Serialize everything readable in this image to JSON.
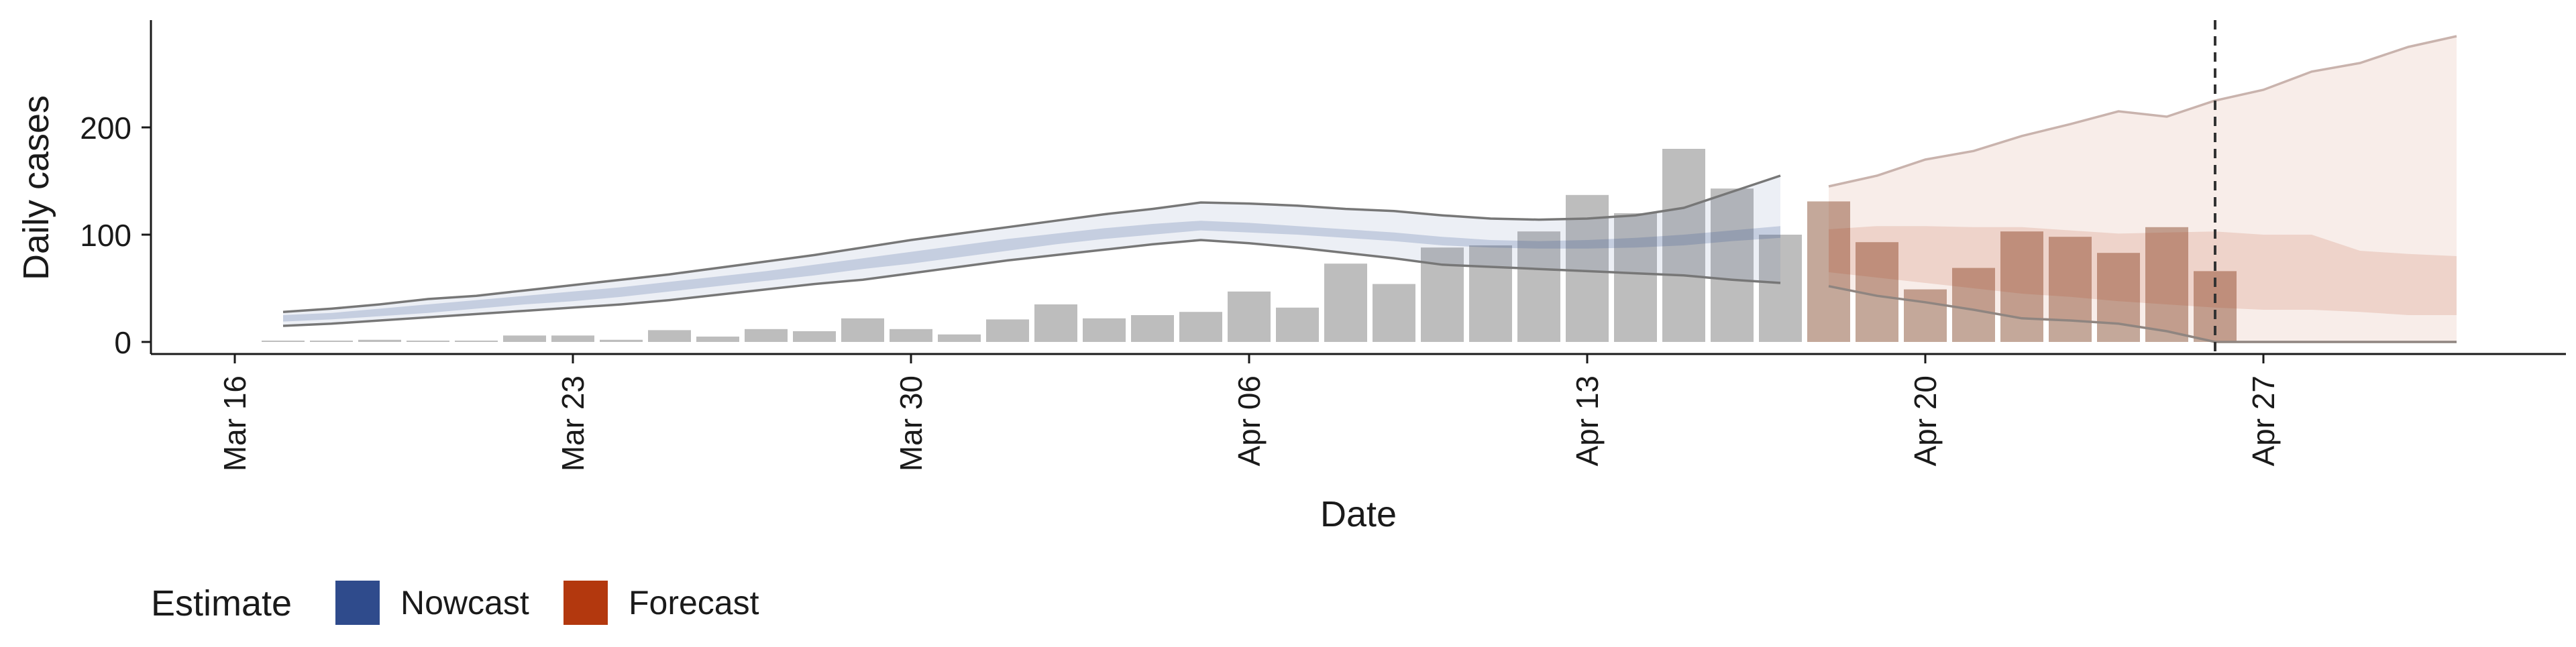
{
  "chart_data": {
    "type": "bar",
    "title": "",
    "xlabel": "Date",
    "ylabel": "Daily cases",
    "x_axis_type": "date",
    "xlim": [
      "2020-03-16",
      "2020-05-01"
    ],
    "ylim": [
      0,
      300
    ],
    "x_ticks": [
      {
        "date": "2020-03-16",
        "label": "Mar 16"
      },
      {
        "date": "2020-03-23",
        "label": "Mar 23"
      },
      {
        "date": "2020-03-30",
        "label": "Mar 30"
      },
      {
        "date": "2020-04-06",
        "label": "Apr 06"
      },
      {
        "date": "2020-04-13",
        "label": "Apr 13"
      },
      {
        "date": "2020-04-20",
        "label": "Apr 20"
      },
      {
        "date": "2020-04-27",
        "label": "Apr 27"
      }
    ],
    "y_ticks": [
      0,
      100,
      200
    ],
    "grid": false,
    "legend": {
      "position": "bottom-left",
      "title": "Estimate",
      "entries": [
        {
          "label": "Nowcast",
          "color": "#2f4b8c"
        },
        {
          "label": "Forecast",
          "color": "#b3380e"
        }
      ]
    },
    "colors": {
      "bars": "#bdbdbd",
      "forecast_bars": "#c4a89a",
      "nowcast_band": "#2f4b8c",
      "forecast_band": "#b3380e",
      "range_lines": "#777777",
      "vline": "#333333"
    },
    "vline_date": "2020-04-26",
    "observed_cases": {
      "dates": [
        "2020-03-17",
        "2020-03-18",
        "2020-03-19",
        "2020-03-20",
        "2020-03-21",
        "2020-03-22",
        "2020-03-23",
        "2020-03-24",
        "2020-03-25",
        "2020-03-26",
        "2020-03-27",
        "2020-03-28",
        "2020-03-29",
        "2020-03-30",
        "2020-03-31",
        "2020-04-01",
        "2020-04-02",
        "2020-04-03",
        "2020-04-04",
        "2020-04-05",
        "2020-04-06",
        "2020-04-07",
        "2020-04-08",
        "2020-04-09",
        "2020-04-10",
        "2020-04-11",
        "2020-04-12",
        "2020-04-13",
        "2020-04-14",
        "2020-04-15",
        "2020-04-16",
        "2020-04-17",
        "2020-04-18",
        "2020-04-19",
        "2020-04-20",
        "2020-04-21",
        "2020-04-22",
        "2020-04-23",
        "2020-04-24",
        "2020-04-25",
        "2020-04-26"
      ],
      "values": [
        1,
        0,
        2,
        0,
        0,
        6,
        6,
        2,
        11,
        5,
        12,
        10,
        22,
        12,
        7,
        21,
        35,
        22,
        25,
        28,
        47,
        32,
        73,
        54,
        88,
        90,
        103,
        137,
        120,
        180,
        143,
        100,
        131,
        93,
        49,
        69,
        103,
        98,
        83,
        107,
        66
      ]
    },
    "nowcast": {
      "dates": [
        "2020-03-17",
        "2020-03-18",
        "2020-03-19",
        "2020-03-20",
        "2020-03-21",
        "2020-03-22",
        "2020-03-23",
        "2020-03-24",
        "2020-03-25",
        "2020-03-26",
        "2020-03-27",
        "2020-03-28",
        "2020-03-29",
        "2020-03-30",
        "2020-03-31",
        "2020-04-01",
        "2020-04-02",
        "2020-04-03",
        "2020-04-04",
        "2020-04-05",
        "2020-04-06",
        "2020-04-07",
        "2020-04-08",
        "2020-04-09",
        "2020-04-10",
        "2020-04-11",
        "2020-04-12",
        "2020-04-13",
        "2020-04-14",
        "2020-04-15",
        "2020-04-16",
        "2020-04-17"
      ],
      "lower_90": [
        15,
        17,
        20,
        23,
        26,
        29,
        32,
        35,
        39,
        44,
        49,
        54,
        58,
        64,
        70,
        76,
        81,
        86,
        91,
        95,
        92,
        88,
        83,
        78,
        72,
        70,
        68,
        66,
        64,
        62,
        58,
        55
      ],
      "upper_90": [
        28,
        31,
        35,
        40,
        43,
        48,
        53,
        58,
        63,
        69,
        75,
        81,
        88,
        95,
        101,
        107,
        113,
        119,
        124,
        130,
        129,
        127,
        124,
        122,
        118,
        115,
        114,
        115,
        118,
        125,
        140,
        155
      ],
      "lower_50": [
        19,
        21,
        24,
        27,
        31,
        35,
        38,
        42,
        47,
        52,
        57,
        62,
        68,
        73,
        79,
        85,
        91,
        96,
        100,
        104,
        102,
        100,
        97,
        94,
        90,
        88,
        87,
        87,
        88,
        90,
        94,
        97
      ],
      "upper_50": [
        25,
        27,
        31,
        35,
        39,
        43,
        47,
        51,
        56,
        61,
        66,
        72,
        78,
        84,
        90,
        96,
        101,
        106,
        110,
        113,
        111,
        108,
        105,
        102,
        98,
        95,
        94,
        95,
        97,
        100,
        104,
        108
      ]
    },
    "forecast": {
      "dates": [
        "2020-04-18",
        "2020-04-19",
        "2020-04-20",
        "2020-04-21",
        "2020-04-22",
        "2020-04-23",
        "2020-04-24",
        "2020-04-25",
        "2020-04-26",
        "2020-04-27",
        "2020-04-28",
        "2020-04-29",
        "2020-04-30",
        "2020-05-01"
      ],
      "lower_90": [
        52,
        43,
        37,
        30,
        22,
        20,
        17,
        10,
        0,
        0,
        0,
        0,
        0,
        0
      ],
      "upper_90": [
        145,
        155,
        170,
        178,
        192,
        203,
        215,
        210,
        225,
        235,
        252,
        260,
        275,
        285
      ],
      "lower_50": [
        65,
        60,
        55,
        50,
        45,
        42,
        38,
        35,
        32,
        30,
        30,
        28,
        25,
        25
      ],
      "upper_50": [
        105,
        108,
        108,
        107,
        107,
        104,
        101,
        102,
        103,
        100,
        100,
        85,
        82,
        80
      ]
    }
  }
}
